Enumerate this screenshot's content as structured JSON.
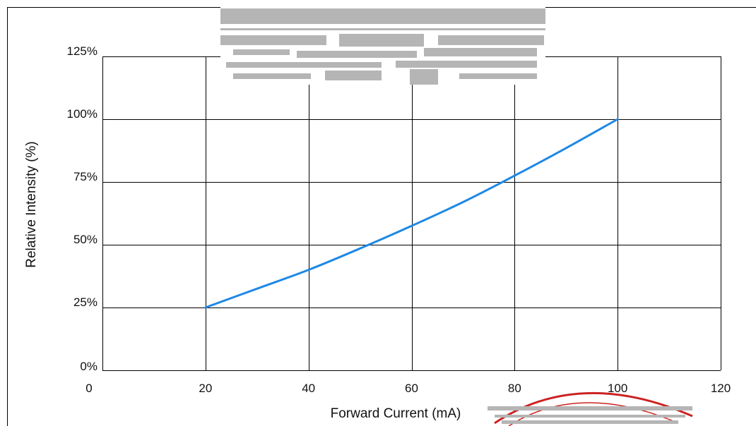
{
  "chart_data": {
    "type": "line",
    "title": "",
    "xlabel": "Forward Current (mA)",
    "ylabel": "Relative Intensity (%)",
    "xlim": [
      0,
      120
    ],
    "ylim": [
      0,
      125
    ],
    "x_ticks": [
      0,
      20,
      40,
      60,
      80,
      100,
      120
    ],
    "x_tick_labels": [
      "0",
      "20",
      "40",
      "60",
      "80",
      "100",
      "120"
    ],
    "y_ticks": [
      0,
      25,
      50,
      75,
      100,
      125
    ],
    "y_tick_labels": [
      "0%",
      "25%",
      "50%",
      "75%",
      "100%",
      "125%"
    ],
    "grid": true,
    "legend": "none",
    "series": [
      {
        "color": "#1e88e5",
        "x": [
          20,
          30,
          40,
          50,
          60,
          70,
          80,
          90,
          100
        ],
        "y": [
          25,
          32.5,
          40,
          48.5,
          57.5,
          67,
          77.5,
          88.5,
          100
        ]
      }
    ]
  },
  "overlays": {
    "scan_bar_color": "#b5b5b5",
    "stamp_color": "#cc2222"
  }
}
